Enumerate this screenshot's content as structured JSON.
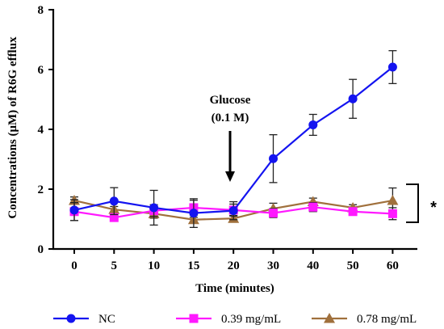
{
  "chart_data": {
    "type": "line",
    "xlabel": "Time (minutes)",
    "ylabel": "Concentrations (μM) of R6G efflux",
    "categories": [
      "0",
      "5",
      "10",
      "15",
      "20",
      "30",
      "40",
      "50",
      "60"
    ],
    "ylim": [
      0,
      8
    ],
    "yticks": [
      0,
      2,
      4,
      6,
      8
    ],
    "grid": false,
    "legend_position": "bottom",
    "series": [
      {
        "name": "NC",
        "color": "#1414f0",
        "marker": "circle",
        "values": [
          1.3,
          1.6,
          1.38,
          1.2,
          1.28,
          3.02,
          4.15,
          5.02,
          6.08
        ],
        "errors": [
          0.35,
          0.45,
          0.58,
          0.48,
          0.3,
          0.8,
          0.35,
          0.65,
          0.55
        ]
      },
      {
        "name": "0.39 mg/mL",
        "color": "#ff19ff",
        "marker": "square",
        "values": [
          1.25,
          1.05,
          1.28,
          1.38,
          1.3,
          1.2,
          1.4,
          1.25,
          1.18
        ],
        "errors": [
          0.3,
          0.12,
          0.2,
          0.25,
          0.2,
          0.15,
          0.15,
          0.12,
          0.2
        ]
      },
      {
        "name": "0.78 mg/mL",
        "color": "#a0703c",
        "marker": "triangle",
        "values": [
          1.62,
          1.32,
          1.18,
          0.98,
          1.02,
          1.35,
          1.58,
          1.38,
          1.62
        ],
        "errors": [
          0.12,
          0.1,
          0.15,
          0.08,
          0.1,
          0.18,
          0.12,
          0.1,
          0.42
        ]
      }
    ],
    "annotations": {
      "arrow_label_line1": "Glucose",
      "arrow_label_line2": "(0.1 M)",
      "arrow_at_category": "20",
      "significance_mark": "*"
    }
  }
}
